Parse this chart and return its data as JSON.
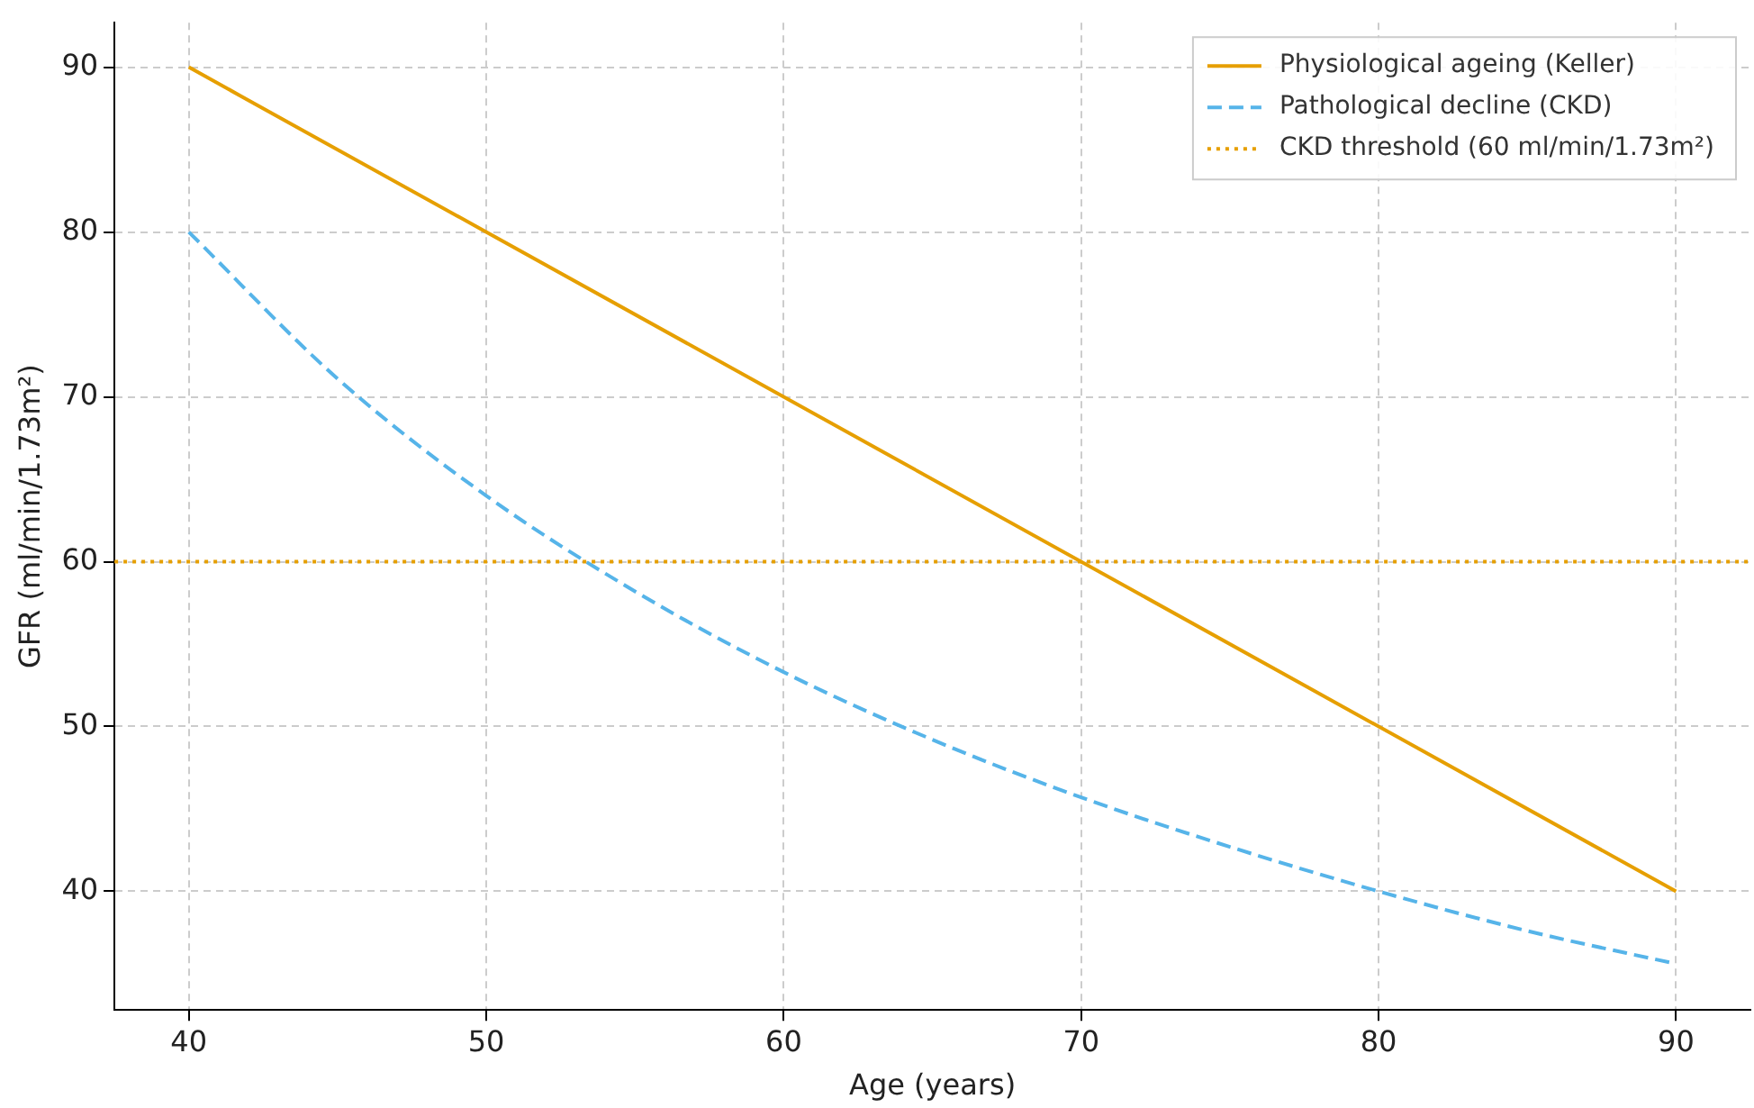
{
  "chart_data": {
    "type": "line",
    "xlabel": "Age (years)",
    "ylabel": "GFR (ml/min/1.73m²)",
    "xlim": [
      37.5,
      92.5
    ],
    "xticks": [
      40,
      50,
      60,
      70,
      80,
      90
    ],
    "ylim": [
      32.8,
      92.7
    ],
    "yticks": [
      40,
      50,
      60,
      70,
      80,
      90
    ],
    "grid": true,
    "legend": "top right",
    "series": [
      {
        "name": "Physiological ageing (Keller)",
        "color": "#e69f00",
        "line_style": "solid",
        "x": [
          40,
          90
        ],
        "values": [
          90,
          40
        ]
      },
      {
        "name": "Pathological decline (CKD)",
        "color": "#56b4e9",
        "line_style": "dashed",
        "x": [
          40,
          45,
          50,
          55,
          60,
          65,
          70,
          75,
          80,
          85,
          90
        ],
        "values": [
          80,
          71.1,
          64,
          58.2,
          53.3,
          49.2,
          45.7,
          42.7,
          40,
          37.6,
          35.6
        ]
      }
    ],
    "ref_lines": [
      {
        "axis": "y",
        "value": 60,
        "label": "CKD threshold (60 ml/min/1.73m²)",
        "color": "#e69f00",
        "line_style": "dotted"
      }
    ]
  }
}
